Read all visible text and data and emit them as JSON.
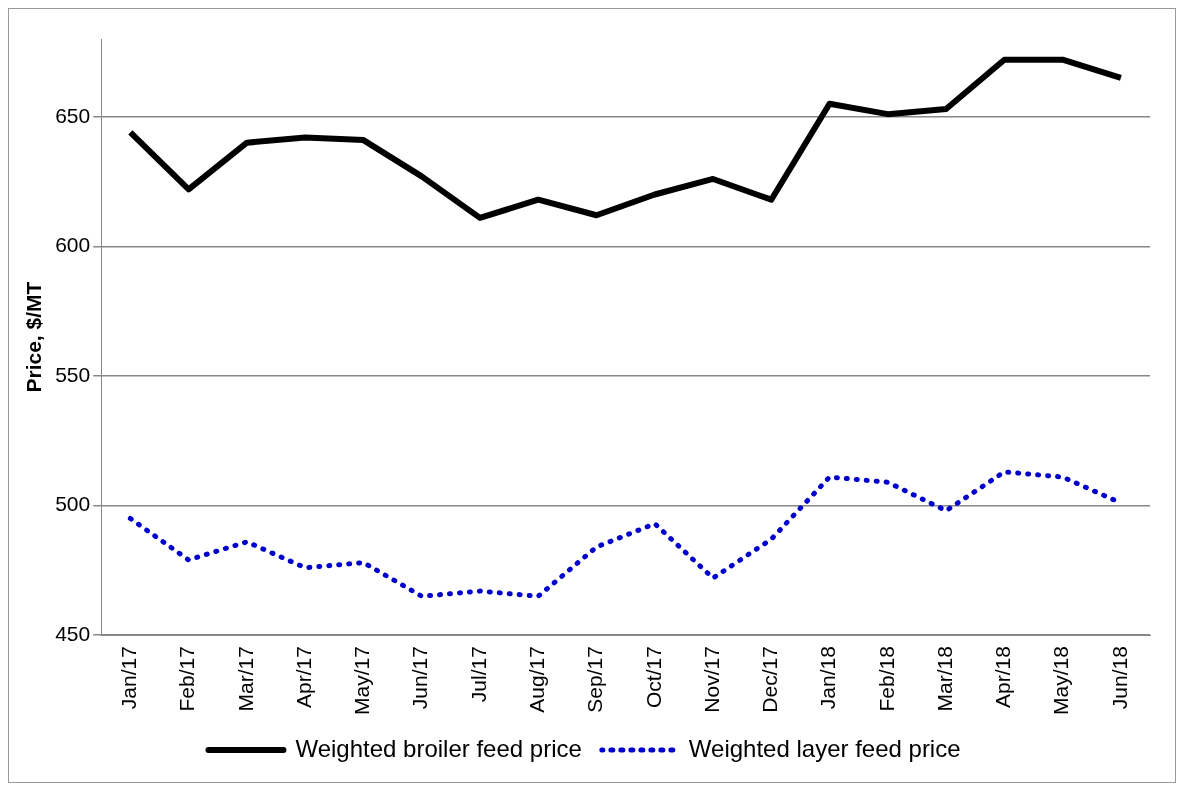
{
  "chart_data": {
    "type": "line",
    "ylabel": "Price, $/MT",
    "categories": [
      "Jan/17",
      "Feb/17",
      "Mar/17",
      "Apr/17",
      "May/17",
      "Jun/17",
      "Jul/17",
      "Aug/17",
      "Sep/17",
      "Oct/17",
      "Nov/17",
      "Dec/17",
      "Jan/18",
      "Feb/18",
      "Mar/18",
      "Apr/18",
      "May/18",
      "Jun/18"
    ],
    "series": [
      {
        "name": "Weighted broiler feed price",
        "color": "#000000",
        "line_style": "solid",
        "values": [
          644,
          622,
          640,
          642,
          641,
          627,
          611,
          618,
          612,
          620,
          626,
          618,
          655,
          651,
          653,
          672,
          672,
          665
        ]
      },
      {
        "name": "Weighted layer feed price",
        "color": "#0000cc",
        "line_style": "dotted",
        "values": [
          495,
          479,
          486,
          476,
          478,
          465,
          467,
          465,
          484,
          493,
          472,
          487,
          511,
          509,
          498,
          513,
          511,
          501
        ]
      }
    ],
    "ylim": [
      450,
      680
    ],
    "yticks": [
      450,
      500,
      550,
      600,
      650
    ],
    "grid": "y",
    "legend": "bottom",
    "marker": "none"
  }
}
